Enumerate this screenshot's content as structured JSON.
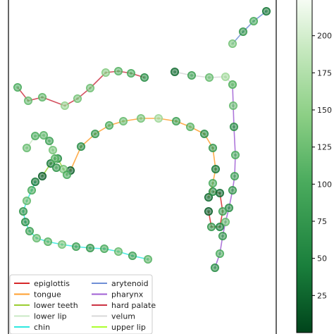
{
  "chart_data": {
    "type": "scatter",
    "title": "",
    "colorbar": {
      "colormap": "Greens",
      "range": [
        0,
        225
      ],
      "ticks": [
        25,
        50,
        75,
        100,
        125,
        150,
        175,
        200
      ],
      "tick_labels": [
        "25",
        "50",
        "75",
        "100",
        "125",
        "150",
        "175",
        "200"
      ],
      "colors": [
        "#00441b",
        "#1a7f3c",
        "#4aab5d",
        "#8ccf85",
        "#c7e9c0",
        "#f7fcf5"
      ]
    },
    "legend": {
      "placement": "bottom-left",
      "entries": [
        {
          "label": "epiglottis",
          "color": "#d62728"
        },
        {
          "label": "tongue",
          "color": "#ff9f2e"
        },
        {
          "label": "lower teeth",
          "color": "#9acd32"
        },
        {
          "label": "lower lip",
          "color": "#c9e8c4"
        },
        {
          "label": "chin",
          "color": "#2ee8e0"
        },
        {
          "label": "arytenoid",
          "color": "#6f8fd6"
        },
        {
          "label": "pharynx",
          "color": "#a05fd4"
        },
        {
          "label": "hard palate",
          "color": "#cc3344"
        },
        {
          "label": "velum",
          "color": "#d8d8d8"
        },
        {
          "label": "upper lip",
          "color": "#adff2f"
        }
      ]
    },
    "series": [
      {
        "name": "hard palate",
        "color": "#cc3344",
        "x": [
          25,
          40,
          60,
          92,
          110,
          128,
          150,
          168,
          186,
          205
        ],
        "y": [
          124,
          143,
          138,
          150,
          140,
          125,
          103,
          101,
          104,
          110
        ],
        "c": [
          90,
          110,
          105,
          140,
          120,
          115,
          130,
          100,
          90,
          60
        ]
      },
      {
        "name": "velum",
        "color": "#d8d8d8",
        "x": [
          248,
          272,
          297,
          320,
          330
        ],
        "y": [
          102,
          107,
          110,
          109,
          120
        ],
        "c": [
          30,
          80,
          110,
          150,
          170
        ]
      },
      {
        "name": "pharynx",
        "color": "#a05fd4",
        "x": [
          330,
          331,
          332,
          334,
          333,
          330,
          325,
          320,
          316,
          312,
          305
        ],
        "y": [
          120,
          150,
          180,
          220,
          250,
          270,
          295,
          315,
          335,
          360,
          380
        ],
        "c": [
          100,
          110,
          60,
          90,
          80,
          70,
          60,
          110,
          70,
          90,
          60
        ]
      },
      {
        "name": "arytenoid",
        "color": "#6f8fd6",
        "x": [
          330,
          345,
          360,
          378
        ],
        "y": [
          62,
          45,
          30,
          16
        ],
        "c": [
          120,
          70,
          90,
          40
        ]
      },
      {
        "name": "tongue",
        "color": "#ff9f2e",
        "x": [
          100,
          115,
          135,
          155,
          175,
          200,
          225,
          250,
          270,
          290,
          302,
          306,
          302,
          296
        ],
        "y": [
          242,
          208,
          190,
          178,
          172,
          168,
          168,
          172,
          180,
          190,
          210,
          240,
          260,
          280
        ],
        "c": [
          20,
          60,
          70,
          90,
          110,
          120,
          150,
          80,
          100,
          60,
          70,
          40,
          90,
          30
        ]
      },
      {
        "name": "epiglottis",
        "color": "#d62728",
        "x": [
          302,
          312,
          316,
          312,
          300,
          296
        ],
        "y": [
          272,
          274,
          300,
          322,
          322,
          300
        ],
        "c": [
          60,
          30,
          80,
          50,
          70,
          20
        ]
      },
      {
        "name": "lower teeth",
        "color": "#9acd32",
        "x": [
          60,
          72,
          82,
          90,
          95
        ],
        "y": [
          250,
          232,
          225,
          240,
          248
        ],
        "c": [
          20,
          40,
          60,
          120,
          90
        ]
      },
      {
        "name": "lower lip",
        "color": "#c9e8c4",
        "x": [
          38,
          50,
          62,
          70,
          75,
          78,
          80
        ],
        "y": [
          210,
          193,
          192,
          200,
          213,
          225,
          238
        ],
        "c": [
          110,
          90,
          100,
          80,
          120,
          100,
          70
        ]
      },
      {
        "name": "chin",
        "color": "#2ee8e0",
        "x": [
          50,
          45,
          38,
          33,
          36,
          42,
          52,
          68,
          88,
          108,
          128,
          148,
          168,
          188,
          210
        ],
        "y": [
          258,
          270,
          285,
          300,
          315,
          328,
          338,
          343,
          347,
          350,
          352,
          353,
          357,
          363,
          368
        ],
        "c": [
          40,
          90,
          110,
          70,
          60,
          80,
          110,
          100,
          120,
          80,
          70,
          90,
          110,
          80,
          100
        ]
      }
    ]
  }
}
